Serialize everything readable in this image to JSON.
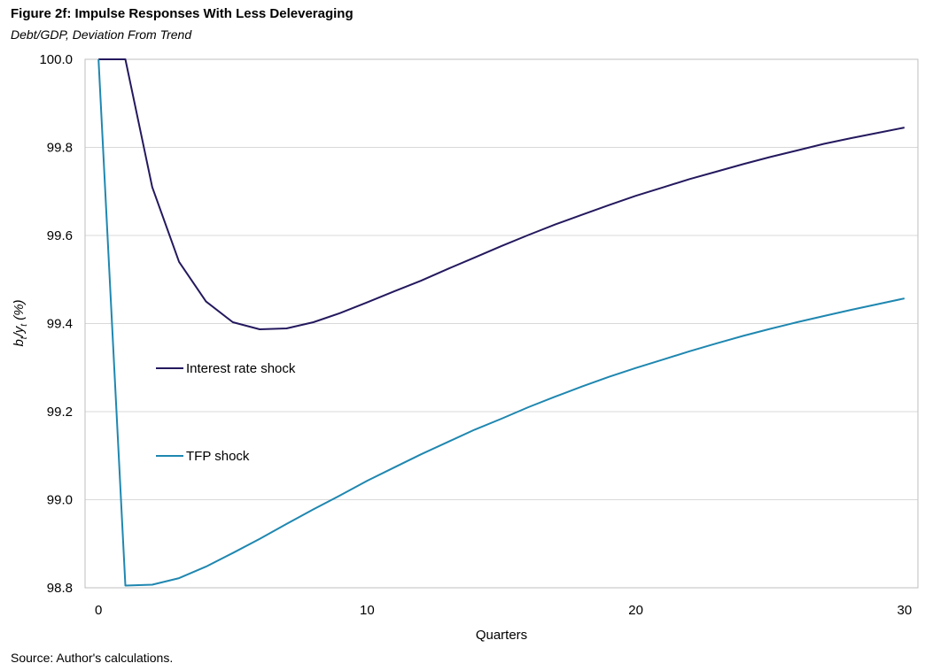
{
  "header": {
    "title": "Figure 2f: Impulse Responses With Less Deleveraging",
    "subtitle": "Debt/GDP, Deviation From Trend"
  },
  "footer": {
    "source": "Source: Author's calculations."
  },
  "chart_data": {
    "type": "line",
    "xlabel": "Quarters",
    "ylabel": "b_t/y_t (%)",
    "ylabel_parts": {
      "b": "b",
      "b_sub": "t",
      "slash": "/",
      "y": "y",
      "y_sub": "t",
      "unit": " (%)"
    },
    "xlim": [
      -0.5,
      30.5
    ],
    "ylim": [
      98.8,
      100.0
    ],
    "x_ticks": [
      0,
      10,
      20,
      30
    ],
    "x_tick_labels": [
      "0",
      "10",
      "20",
      "30"
    ],
    "y_ticks": [
      98.8,
      99.0,
      99.2,
      99.4,
      99.6,
      99.8,
      100.0
    ],
    "y_tick_labels": [
      "98.8",
      "99.0",
      "99.2",
      "99.4",
      "99.6",
      "99.8",
      "100.0"
    ],
    "grid": "horizontal",
    "legend_placement": "inside-left",
    "series": [
      {
        "name": "Interest rate shock",
        "color": "#24195e",
        "x": [
          0,
          1,
          2,
          3,
          4,
          5,
          6,
          7,
          8,
          9,
          10,
          11,
          12,
          13,
          14,
          15,
          16,
          17,
          18,
          19,
          20,
          21,
          22,
          23,
          24,
          25,
          26,
          27,
          28,
          29,
          30
        ],
        "y": [
          100.0,
          100.0,
          99.71,
          99.54,
          99.45,
          99.403,
          99.387,
          99.389,
          99.403,
          99.424,
          99.448,
          99.473,
          99.497,
          99.524,
          99.55,
          99.576,
          99.601,
          99.625,
          99.647,
          99.669,
          99.69,
          99.709,
          99.728,
          99.745,
          99.762,
          99.778,
          99.793,
          99.808,
          99.821,
          99.833,
          99.845
        ]
      },
      {
        "name": "TFP shock",
        "color": "#1f87b0",
        "x": [
          0,
          1,
          2,
          3,
          4,
          5,
          6,
          7,
          8,
          9,
          10,
          11,
          12,
          13,
          14,
          15,
          16,
          17,
          18,
          19,
          20,
          21,
          22,
          23,
          24,
          25,
          26,
          27,
          28,
          29,
          30
        ],
        "y": [
          100.0,
          98.805,
          98.807,
          98.822,
          98.848,
          98.879,
          98.911,
          98.945,
          98.978,
          99.01,
          99.043,
          99.073,
          99.103,
          99.131,
          99.159,
          99.184,
          99.21,
          99.234,
          99.257,
          99.279,
          99.299,
          99.318,
          99.337,
          99.355,
          99.372,
          99.388,
          99.403,
          99.417,
          99.431,
          99.444,
          99.457
        ]
      }
    ]
  }
}
